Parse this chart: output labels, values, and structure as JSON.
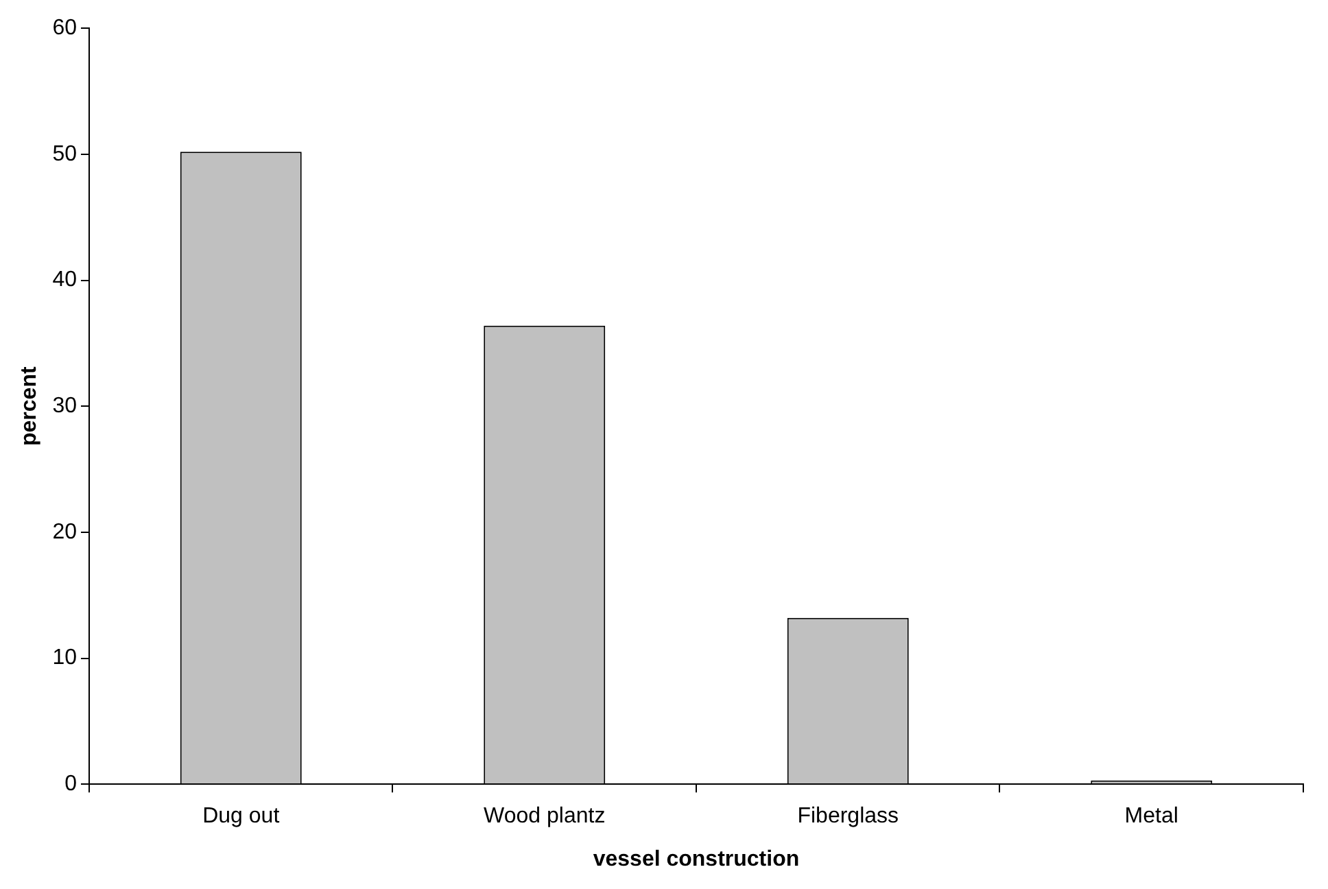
{
  "chart_data": {
    "type": "bar",
    "xlabel": "vessel construction",
    "ylabel": "percent",
    "categories": [
      "Dug out",
      "Wood plantz",
      "Fiberglass",
      "Metal"
    ],
    "values": [
      50.2,
      36.4,
      13.2,
      0.3
    ],
    "color": "#c0c0c0",
    "ylim": [
      0,
      60
    ],
    "yticks": [
      0,
      10,
      20,
      30,
      40,
      50,
      60
    ],
    "grid": false,
    "legend": false
  }
}
